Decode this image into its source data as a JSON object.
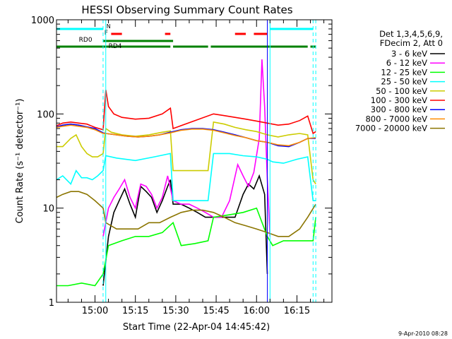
{
  "chart_data": {
    "type": "line",
    "title": "HESSI Observing Summary Count Rates",
    "xlabel": "Start Time (22-Apr-04 14:45:42)",
    "ylabel": "Count Rate (s⁻¹ detector⁻¹)",
    "yscale": "log",
    "ylim": [
      1,
      1000
    ],
    "y_ticks": [
      1,
      10,
      100,
      1000
    ],
    "y_tick_labels": [
      "1",
      "10",
      "100",
      "1000"
    ],
    "xlim": [
      "14:45:42",
      "16:28:00"
    ],
    "x_ticks": [
      "15:00",
      "15:15",
      "15:30",
      "15:45",
      "16:00",
      "16:15"
    ],
    "grid": false,
    "legend_position": "right",
    "legend_header": [
      "Det 1,3,4,5,6,9,",
      "FDecim 2, Att 0"
    ],
    "timestamp": "9-Apr-2010 08:28",
    "legend": [
      {
        "label": "3 - 6 keV",
        "color": "#000000"
      },
      {
        "label": "6 - 12 keV",
        "color": "#ff00ff"
      },
      {
        "label": "12 - 25 keV",
        "color": "#00ff00"
      },
      {
        "label": "25 - 50 keV",
        "color": "#00ffff"
      },
      {
        "label": "50 - 100 keV",
        "color": "#cccc00"
      },
      {
        "label": "100 - 300 keV",
        "color": "#ff0000"
      },
      {
        "label": "300 - 800 keV",
        "color": "#0000ff"
      },
      {
        "label": "800 - 7000 keV",
        "color": "#ff8c00"
      },
      {
        "label": "7000 - 20000 keV",
        "color": "#8b7500"
      }
    ],
    "flags": [
      {
        "name": "N",
        "color": "#00ffff",
        "segments": [
          [
            "14:45",
            "15:03"
          ],
          [
            "16:05",
            "16:21"
          ]
        ]
      },
      {
        "name": "F",
        "color": "#ff0000",
        "segments": [
          [
            "15:06",
            "15:10"
          ],
          [
            "15:26",
            "15:28"
          ],
          [
            "15:52",
            "15:56"
          ],
          [
            "15:59",
            "16:04"
          ]
        ]
      },
      {
        "name": "RD0",
        "color": "#008000",
        "segments": [
          [
            "15:03",
            "15:29"
          ]
        ]
      },
      {
        "name": "RD4",
        "color": "#008000",
        "segments": [
          [
            "14:45",
            "15:03"
          ],
          [
            "15:03",
            "15:28"
          ],
          [
            "15:29",
            "15:42"
          ],
          [
            "15:43",
            "16:19"
          ],
          [
            "16:20",
            "16:22"
          ]
        ]
      }
    ],
    "vertical_lines": [
      {
        "time": "15:04",
        "color": "#00ffff",
        "style": "solid"
      },
      {
        "time": "16:05",
        "color": "#00ffff",
        "style": "solid"
      },
      {
        "time": "15:03",
        "color": "#00ffff",
        "style": "dashed"
      },
      {
        "time": "16:04",
        "color": "#0000ff",
        "style": "solid"
      },
      {
        "time": "16:21",
        "color": "#00ffff",
        "style": "dashed"
      },
      {
        "time": "16:22",
        "color": "#00ffff",
        "style": "dashed"
      }
    ],
    "series": [
      {
        "name": "3 - 6 keV",
        "color": "#000000",
        "x": [
          "15:03",
          "15:05",
          "15:07",
          "15:09",
          "15:11",
          "15:13",
          "15:15",
          "15:17",
          "15:19",
          "15:21",
          "15:23",
          "15:25",
          "15:27",
          "15:28",
          "15:29",
          "15:32",
          "15:35",
          "15:38",
          "15:41",
          "15:44",
          "15:48",
          "15:52",
          "15:55",
          "15:57",
          "15:59",
          "16:01",
          "16:03",
          "16:04"
        ],
        "y": [
          1.5,
          5,
          9,
          12,
          16,
          11,
          8,
          17,
          15,
          13,
          9,
          12,
          17,
          20,
          11,
          11,
          10,
          9,
          8,
          8,
          8,
          8,
          14,
          18,
          16,
          22,
          14,
          2
        ]
      },
      {
        "name": "6 - 12 keV",
        "color": "#ff00ff",
        "x": [
          "15:03",
          "15:05",
          "15:07",
          "15:09",
          "15:11",
          "15:13",
          "15:15",
          "15:17",
          "15:19",
          "15:21",
          "15:23",
          "15:25",
          "15:27",
          "15:29",
          "15:32",
          "15:35",
          "15:38",
          "15:41",
          "15:44",
          "15:47",
          "15:50",
          "15:53",
          "15:55",
          "15:57",
          "15:59",
          "16:01",
          "16:02",
          "16:03",
          "16:04",
          "16:05"
        ],
        "y": [
          5,
          10,
          13,
          16,
          20,
          13,
          10,
          18,
          17,
          14,
          10,
          13,
          22,
          12,
          11,
          11,
          10,
          9,
          8,
          8,
          12,
          29,
          22,
          17,
          24,
          55,
          380,
          120,
          20,
          5
        ]
      },
      {
        "name": "12 - 25 keV",
        "color": "#00ff00",
        "x": [
          "14:45:42",
          "14:50",
          "14:55",
          "15:00",
          "15:03",
          "15:05",
          "15:10",
          "15:15",
          "15:20",
          "15:25",
          "15:29",
          "15:32",
          "15:37",
          "15:42",
          "15:44",
          "15:50",
          "15:55",
          "16:00",
          "16:04",
          "16:06",
          "16:10",
          "16:15",
          "16:19",
          "16:21",
          "16:22"
        ],
        "y": [
          1.5,
          1.5,
          1.6,
          1.5,
          2,
          4,
          4.5,
          5,
          5,
          5.5,
          7,
          4,
          4.2,
          4.5,
          8,
          8.5,
          9,
          10,
          5,
          4,
          4.5,
          4.5,
          4.5,
          4.5,
          8
        ]
      },
      {
        "name": "25 - 50 keV",
        "color": "#00ffff",
        "x": [
          "14:45:42",
          "14:48",
          "14:51",
          "14:53",
          "14:55",
          "14:57",
          "14:59",
          "15:01",
          "15:03",
          "15:04",
          "15:08",
          "15:15",
          "15:22",
          "15:28",
          "15:29",
          "15:35",
          "15:42",
          "15:44",
          "15:50",
          "15:55",
          "16:00",
          "16:04",
          "16:06",
          "16:10",
          "16:15",
          "16:19",
          "16:21",
          "16:22"
        ],
        "y": [
          20,
          22,
          18,
          25,
          21,
          21,
          20,
          22,
          25,
          36,
          34,
          32,
          35,
          38,
          12,
          12,
          12,
          38,
          38,
          36,
          35,
          33,
          31,
          30,
          33,
          35,
          12,
          12
        ]
      },
      {
        "name": "50 - 100 keV",
        "color": "#cccc00",
        "x": [
          "14:45:42",
          "14:48",
          "14:51",
          "14:53",
          "14:55",
          "14:57",
          "14:59",
          "15:01",
          "15:03",
          "15:04",
          "15:06",
          "15:10",
          "15:15",
          "15:20",
          "15:25",
          "15:28",
          "15:29",
          "15:35",
          "15:42",
          "15:44",
          "15:48",
          "15:52",
          "15:56",
          "16:00",
          "16:04",
          "16:08",
          "16:12",
          "16:16",
          "16:19",
          "16:21",
          "16:22"
        ],
        "y": [
          45,
          45,
          55,
          60,
          45,
          38,
          35,
          35,
          38,
          70,
          64,
          60,
          58,
          60,
          64,
          66,
          25,
          25,
          25,
          82,
          78,
          72,
          68,
          65,
          60,
          57,
          60,
          62,
          60,
          20,
          18
        ]
      },
      {
        "name": "100 - 300 keV",
        "color": "#ff0000",
        "x": [
          "14:45:42",
          "14:48",
          "14:51",
          "14:54",
          "14:57",
          "15:00",
          "15:03",
          "15:04",
          "15:05",
          "15:07",
          "15:10",
          "15:15",
          "15:20",
          "15:25",
          "15:28",
          "15:29",
          "15:44",
          "15:48",
          "15:52",
          "15:56",
          "16:00",
          "16:04",
          "16:08",
          "16:12",
          "16:16",
          "16:19",
          "16:21",
          "16:22"
        ],
        "y": [
          75,
          80,
          82,
          80,
          78,
          72,
          68,
          180,
          120,
          100,
          92,
          88,
          90,
          100,
          115,
          70,
          100,
          96,
          92,
          88,
          84,
          80,
          76,
          78,
          85,
          95,
          62,
          65
        ]
      },
      {
        "name": "300 - 800 keV",
        "color": "#0000ff",
        "x": [
          "14:45:42",
          "14:48",
          "14:51",
          "14:54",
          "14:57",
          "15:00",
          "15:03",
          "15:04",
          "15:08",
          "15:12",
          "15:16",
          "15:20",
          "15:24",
          "15:28",
          "15:32",
          "15:36",
          "15:40",
          "15:44",
          "15:48",
          "15:52",
          "15:56",
          "16:00",
          "16:04",
          "16:08",
          "16:12",
          "16:16",
          "16:19",
          "16:22"
        ],
        "y": [
          73,
          76,
          78,
          76,
          73,
          70,
          63,
          62,
          60,
          58,
          57,
          58,
          60,
          64,
          68,
          70,
          70,
          68,
          64,
          60,
          56,
          52,
          50,
          46,
          45,
          50,
          55,
          55
        ]
      },
      {
        "name": "800 - 7000 keV",
        "color": "#ff8c00",
        "x": [
          "14:45:42",
          "14:48",
          "14:51",
          "14:54",
          "14:57",
          "15:00",
          "15:03",
          "15:04",
          "15:08",
          "15:12",
          "15:16",
          "15:20",
          "15:24",
          "15:28",
          "15:32",
          "15:36",
          "15:40",
          "15:44",
          "15:48",
          "15:52",
          "15:56",
          "16:00",
          "16:04",
          "16:08",
          "16:12",
          "16:16",
          "16:19",
          "16:22"
        ],
        "y": [
          72,
          74,
          76,
          74,
          72,
          68,
          62,
          62,
          60,
          58,
          57,
          58,
          60,
          63,
          67,
          69,
          69,
          67,
          63,
          59,
          56,
          52,
          50,
          47,
          46,
          50,
          55,
          56
        ]
      },
      {
        "name": "7000 - 20000 keV",
        "color": "#8b7500",
        "x": [
          "14:45:42",
          "14:48",
          "14:51",
          "14:54",
          "14:57",
          "15:00",
          "15:03",
          "15:04",
          "15:08",
          "15:12",
          "15:16",
          "15:20",
          "15:24",
          "15:28",
          "15:32",
          "15:36",
          "15:40",
          "15:44",
          "15:48",
          "15:52",
          "15:56",
          "16:00",
          "16:04",
          "16:08",
          "16:12",
          "16:16",
          "16:19",
          "16:22"
        ],
        "y": [
          13,
          14,
          15,
          15,
          14,
          12,
          10,
          7,
          6,
          6,
          6,
          7,
          7,
          8,
          9,
          9.5,
          9.5,
          9,
          8,
          7,
          6.5,
          6,
          5.5,
          5,
          5,
          6,
          8,
          11
        ]
      }
    ]
  }
}
